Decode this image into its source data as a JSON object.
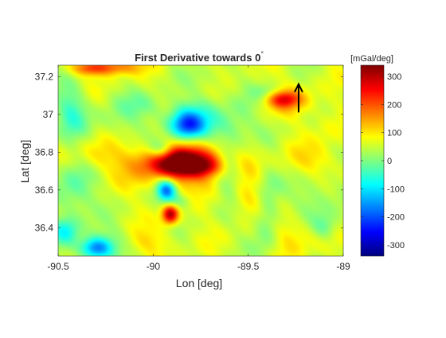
{
  "window": {
    "background": "#ffffff"
  },
  "chart_data": {
    "type": "heatmap",
    "title": "First Derivative towards 0",
    "title_superscript": "°",
    "xlabel": "Lon [deg]",
    "ylabel": "Lat [deg]",
    "xlim": [
      -90.5,
      -89.0
    ],
    "ylim": [
      36.25,
      37.26
    ],
    "xticks": [
      -90.5,
      -90.0,
      -89.5,
      -89.0
    ],
    "xtick_labels": [
      "-90.5",
      "-90",
      "-89.5",
      "-89"
    ],
    "yticks": [
      36.4,
      36.6,
      36.8,
      37.0,
      37.2
    ],
    "ytick_labels": [
      "36.4",
      "36.6",
      "36.8",
      "37",
      "37.2"
    ],
    "colorbar": {
      "label": "[mGal/deg]",
      "limits": [
        -340,
        340
      ],
      "ticks": [
        -300,
        -200,
        -100,
        0,
        100,
        200,
        300
      ],
      "tick_labels": [
        "-300",
        "-200",
        "-100",
        "0",
        "100",
        "200",
        "300"
      ],
      "colormap": "jet"
    },
    "arrow": {
      "lon": -89.235,
      "lat_from": 37.01,
      "lat_to": 37.16,
      "meaning": "direction 0 degrees (north)"
    },
    "grid": false,
    "baseline_value": 55,
    "anomalies": [
      {
        "lon": -89.84,
        "lat": 36.74,
        "slon": 0.12,
        "slat": 0.05,
        "value": 290
      },
      {
        "lon": -89.85,
        "lat": 36.75,
        "slon": 0.22,
        "slat": 0.09,
        "value": 120
      },
      {
        "lon": -89.72,
        "lat": 36.72,
        "slon": 0.05,
        "slat": 0.03,
        "value": 60
      },
      {
        "lon": -89.82,
        "lat": 36.94,
        "slon": 0.06,
        "slat": 0.05,
        "value": -200
      },
      {
        "lon": -89.8,
        "lat": 36.97,
        "slon": 0.12,
        "slat": 0.08,
        "value": -90
      },
      {
        "lon": -89.96,
        "lat": 36.81,
        "slon": 0.05,
        "slat": 0.04,
        "value": -120
      },
      {
        "lon": -89.93,
        "lat": 36.6,
        "slon": 0.035,
        "slat": 0.04,
        "value": -230
      },
      {
        "lon": -89.91,
        "lat": 36.47,
        "slon": 0.03,
        "slat": 0.035,
        "value": 260
      },
      {
        "lon": -89.86,
        "lat": 36.54,
        "slon": 0.05,
        "slat": 0.03,
        "value": -60
      },
      {
        "lon": -89.31,
        "lat": 37.08,
        "slon": 0.06,
        "slat": 0.03,
        "value": 150
      },
      {
        "lon": -89.3,
        "lat": 37.07,
        "slon": 0.12,
        "slat": 0.06,
        "value": 50
      },
      {
        "lon": -89.4,
        "lat": 37.12,
        "slon": 0.05,
        "slat": 0.03,
        "value": -60
      },
      {
        "lon": -90.23,
        "lat": 37.25,
        "slon": 0.1,
        "slat": 0.03,
        "value": 150
      },
      {
        "lon": -90.35,
        "lat": 37.24,
        "slon": 0.06,
        "slat": 0.025,
        "value": 80
      },
      {
        "lon": -90.43,
        "lat": 37.02,
        "slon": 0.06,
        "slat": 0.1,
        "value": -90
      },
      {
        "lon": -90.42,
        "lat": 36.6,
        "slon": 0.08,
        "slat": 0.12,
        "value": -80
      },
      {
        "lon": -90.46,
        "lat": 36.38,
        "slon": 0.05,
        "slat": 0.05,
        "value": -110
      },
      {
        "lon": -90.3,
        "lat": 36.29,
        "slon": 0.06,
        "slat": 0.04,
        "value": -230
      },
      {
        "lon": -90.18,
        "lat": 36.34,
        "slon": 0.12,
        "slat": 0.05,
        "value": -50
      },
      {
        "lon": -90.05,
        "lat": 36.33,
        "slon": 0.1,
        "slat": 0.05,
        "value": 70
      },
      {
        "lon": -89.6,
        "lat": 36.7,
        "slon": 0.05,
        "slat": 0.12,
        "value": -90
      },
      {
        "lon": -89.6,
        "lat": 36.93,
        "slon": 0.1,
        "slat": 0.07,
        "value": -60
      },
      {
        "lon": -89.5,
        "lat": 36.55,
        "slon": 0.1,
        "slat": 0.06,
        "value": 60
      },
      {
        "lon": -89.4,
        "lat": 36.48,
        "slon": 0.05,
        "slat": 0.15,
        "value": -90
      },
      {
        "lon": -89.25,
        "lat": 36.37,
        "slon": 0.1,
        "slat": 0.08,
        "value": 60
      },
      {
        "lon": -89.15,
        "lat": 36.55,
        "slon": 0.08,
        "slat": 0.1,
        "value": -60
      },
      {
        "lon": -89.1,
        "lat": 36.4,
        "slon": 0.05,
        "slat": 0.05,
        "value": -80
      },
      {
        "lon": -89.15,
        "lat": 36.75,
        "slon": 0.1,
        "slat": 0.06,
        "value": 50
      },
      {
        "lon": -89.07,
        "lat": 36.95,
        "slon": 0.06,
        "slat": 0.08,
        "value": 30
      },
      {
        "lon": -90.2,
        "lat": 36.95,
        "slon": 0.1,
        "slat": 0.08,
        "value": -40
      },
      {
        "lon": -90.05,
        "lat": 37.05,
        "slon": 0.08,
        "slat": 0.05,
        "value": -50
      },
      {
        "lon": -90.3,
        "lat": 36.78,
        "slon": 0.08,
        "slat": 0.06,
        "value": 50
      },
      {
        "lon": -89.7,
        "lat": 37.18,
        "slon": 0.08,
        "slat": 0.05,
        "value": -30
      },
      {
        "lon": -89.5,
        "lat": 37.05,
        "slon": 0.06,
        "slat": 0.05,
        "value": -30
      }
    ]
  }
}
